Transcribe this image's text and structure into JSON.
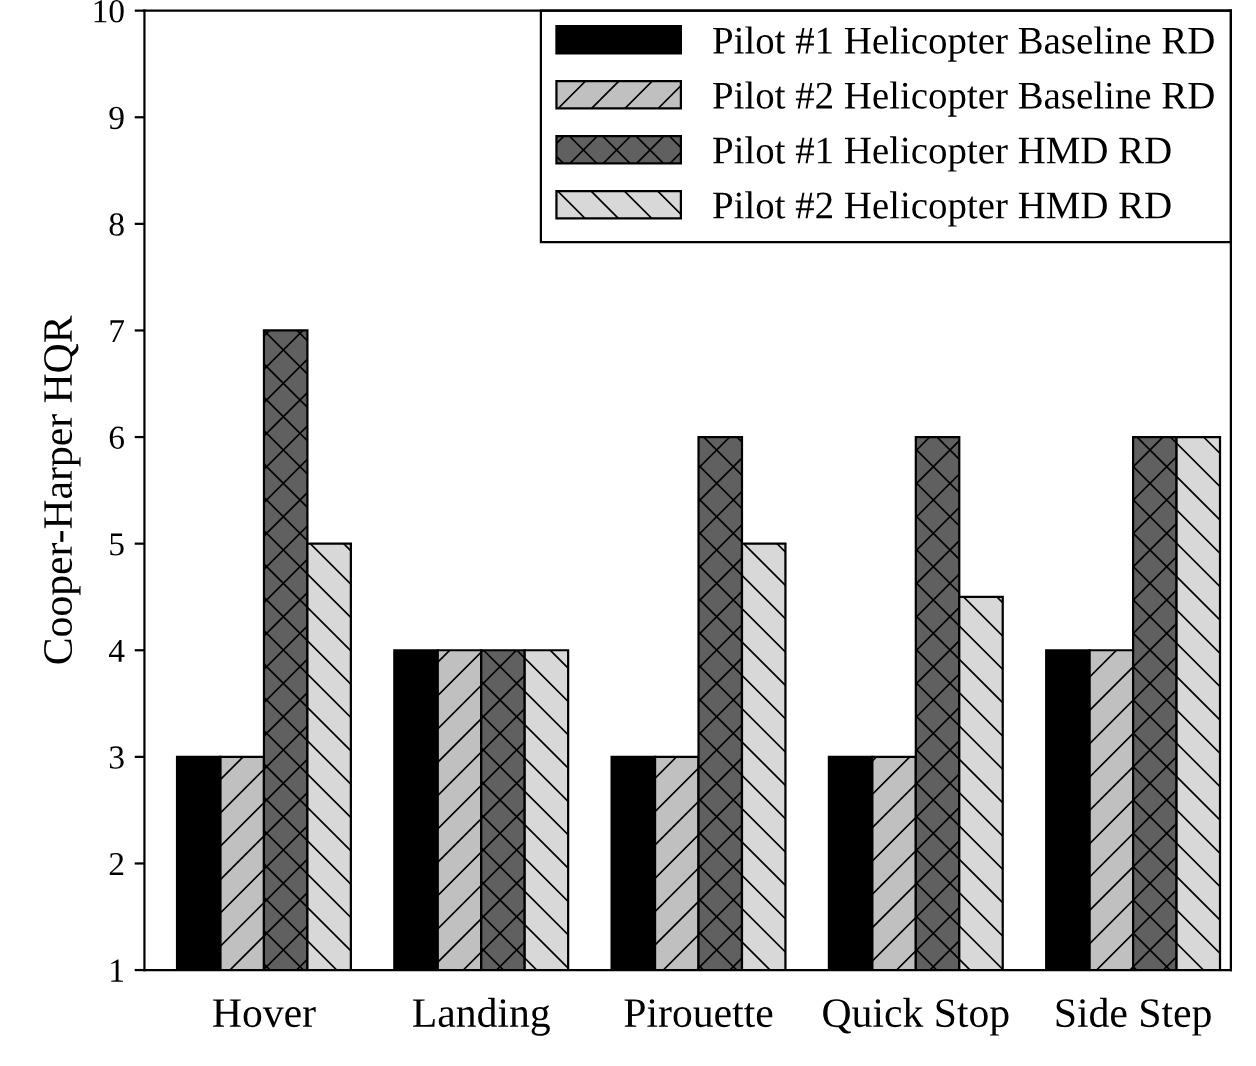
{
  "chart_data": {
    "type": "bar",
    "ylabel": "Cooper-Harper HQR",
    "categories": [
      "Hover",
      "Landing",
      "Pirouette",
      "Quick Stop",
      "Side Step"
    ],
    "series": [
      {
        "name": "Pilot #1 Helicopter Baseline RD",
        "color": "#000000",
        "values": [
          3,
          4,
          3,
          3,
          4
        ]
      },
      {
        "name": "Pilot #2 Helicopter Baseline RD",
        "color": "#c0c0c0",
        "values": [
          3,
          4,
          3,
          3,
          4
        ]
      },
      {
        "name": "Pilot #1 Helicopter HMD RD",
        "color": "#606060",
        "values": [
          7,
          4,
          6,
          6,
          6
        ]
      },
      {
        "name": "Pilot #2 Helicopter HMD RD",
        "color": "#d8d8d8",
        "values": [
          5,
          4,
          5,
          4.5,
          6
        ]
      }
    ],
    "ylim": [
      1,
      10
    ],
    "yticks": [
      1,
      2,
      3,
      4,
      5,
      6,
      7,
      8,
      9,
      10
    ],
    "grid": false,
    "legend": "top right"
  }
}
